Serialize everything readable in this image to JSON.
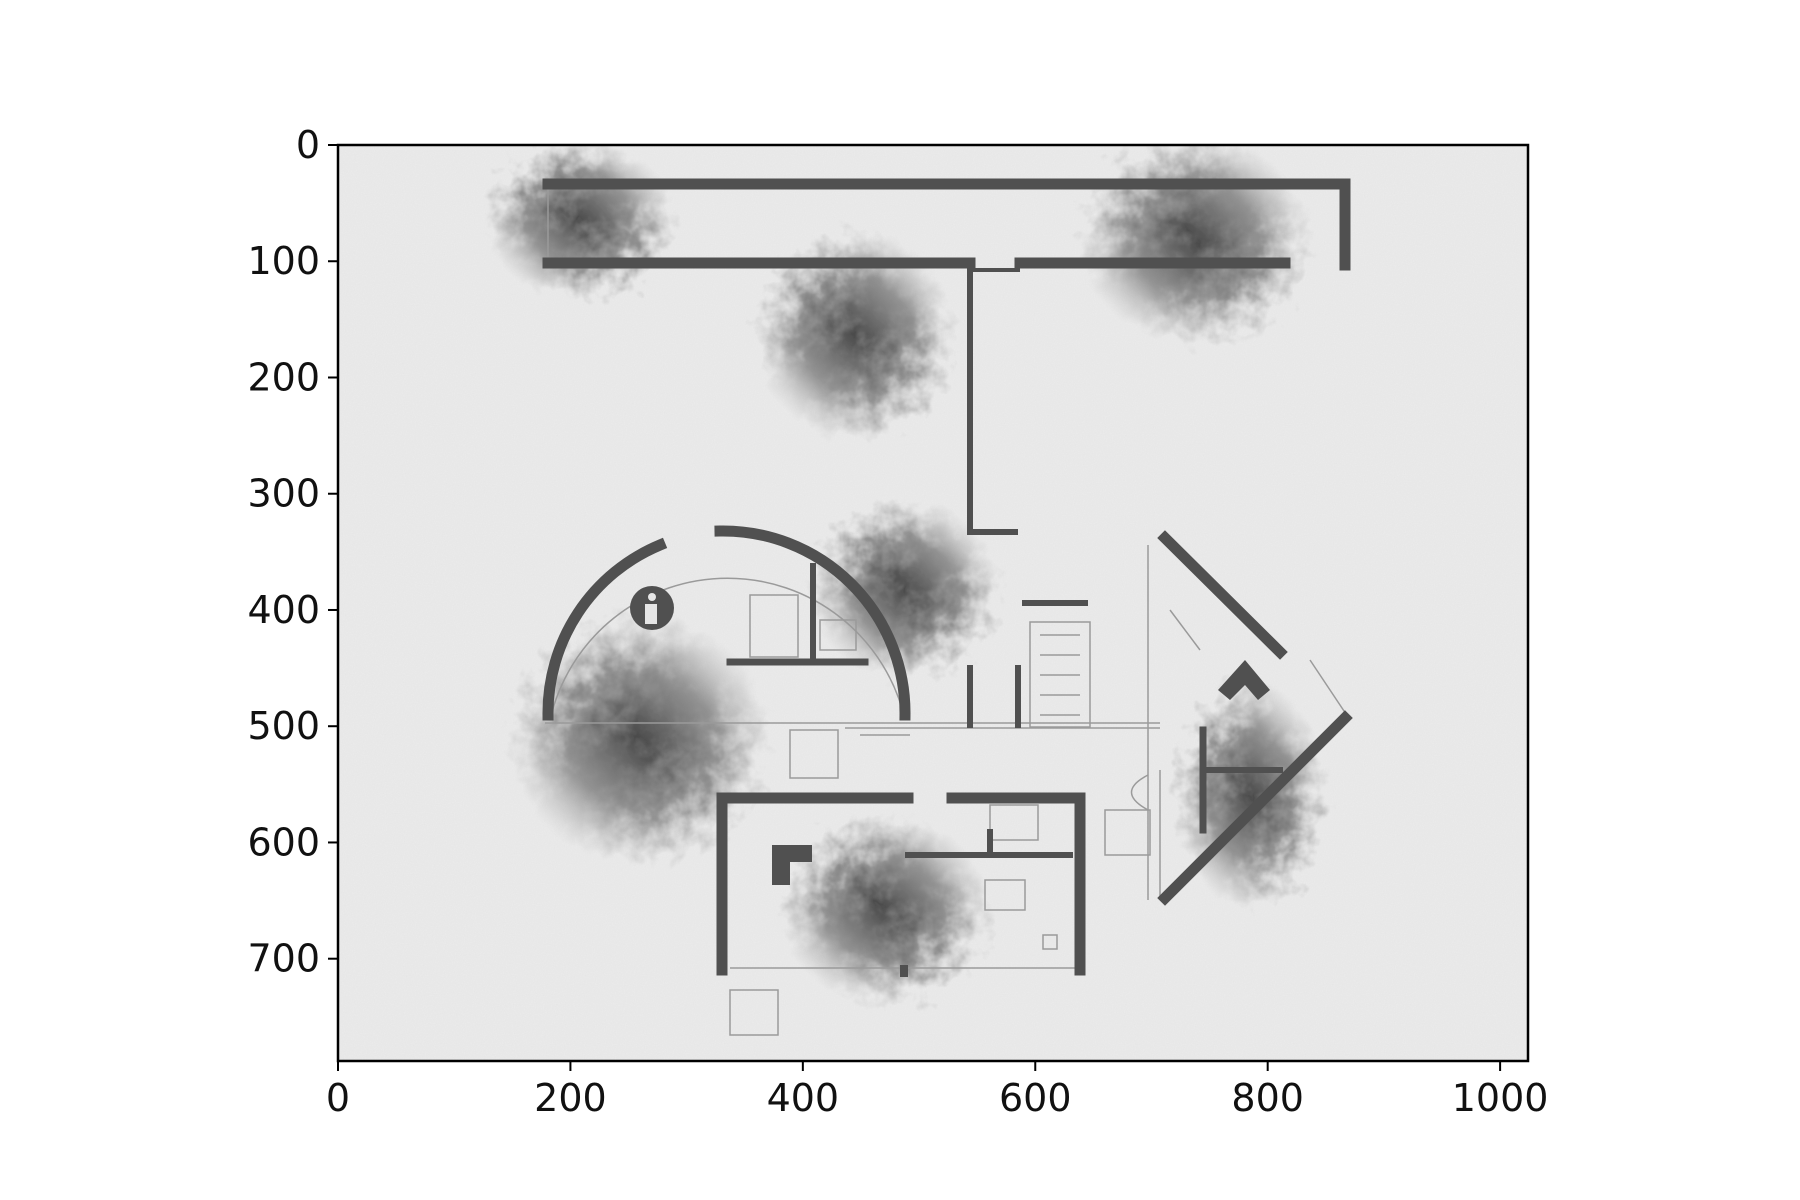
{
  "chart_data": {
    "type": "image",
    "title": "",
    "xlabel": "",
    "ylabel": "",
    "xlim": [
      0,
      1024
    ],
    "ylim": [
      788,
      0
    ],
    "x_ticks": [
      0,
      200,
      400,
      600,
      800,
      1000
    ],
    "y_ticks": [
      0,
      100,
      200,
      300,
      400,
      500,
      600,
      700
    ],
    "grid": false,
    "colormap": "grayscale",
    "image_content": "architectural floor plan with trees",
    "colors": {
      "wall": "#505050",
      "tree": "#3a3a3a",
      "thin_line": "#9a9a9a",
      "paper": "#ececec",
      "axis": "#000000"
    }
  }
}
